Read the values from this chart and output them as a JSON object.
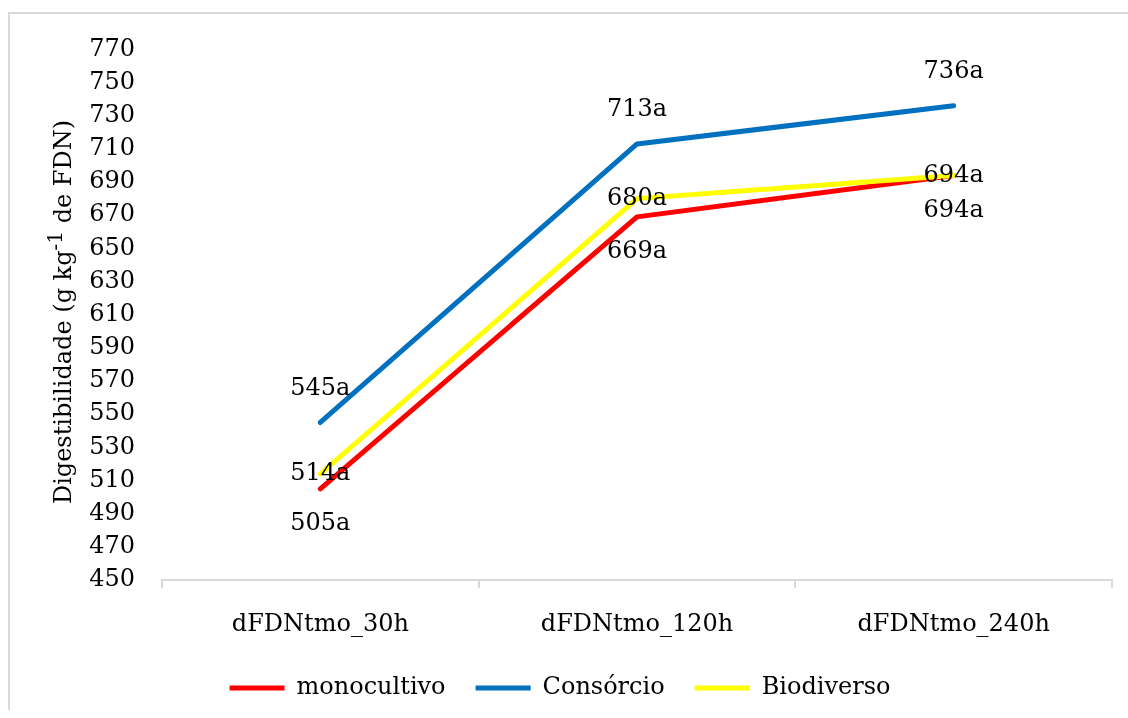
{
  "chart_data": {
    "type": "line",
    "categories": [
      "dFDNtmo_30h",
      "dFDNtmo_120h",
      "dFDNtmo_240h"
    ],
    "ylabel": "Digestibilidade (g kg$^{-1}$ de FDN)",
    "ylim": [
      450,
      770
    ],
    "yticks": [
      450,
      470,
      490,
      510,
      530,
      550,
      570,
      590,
      610,
      630,
      650,
      670,
      690,
      710,
      730,
      750,
      770
    ],
    "legend": "bottom",
    "series": [
      {
        "name": "monocultivo",
        "color": "#ff0000",
        "values": [
          505,
          669,
          694
        ],
        "value_labels": [
          "505a",
          "669a",
          "694a"
        ]
      },
      {
        "name": "Consórcio",
        "color": "#0070c0",
        "values": [
          545,
          713,
          736
        ],
        "value_labels": [
          "545a",
          "713a",
          "736a"
        ]
      },
      {
        "name": "Biodiverso",
        "color": "#ffff00",
        "values": [
          514,
          680,
          694
        ],
        "value_labels": [
          "514a",
          "680a",
          "694a"
        ]
      }
    ]
  }
}
